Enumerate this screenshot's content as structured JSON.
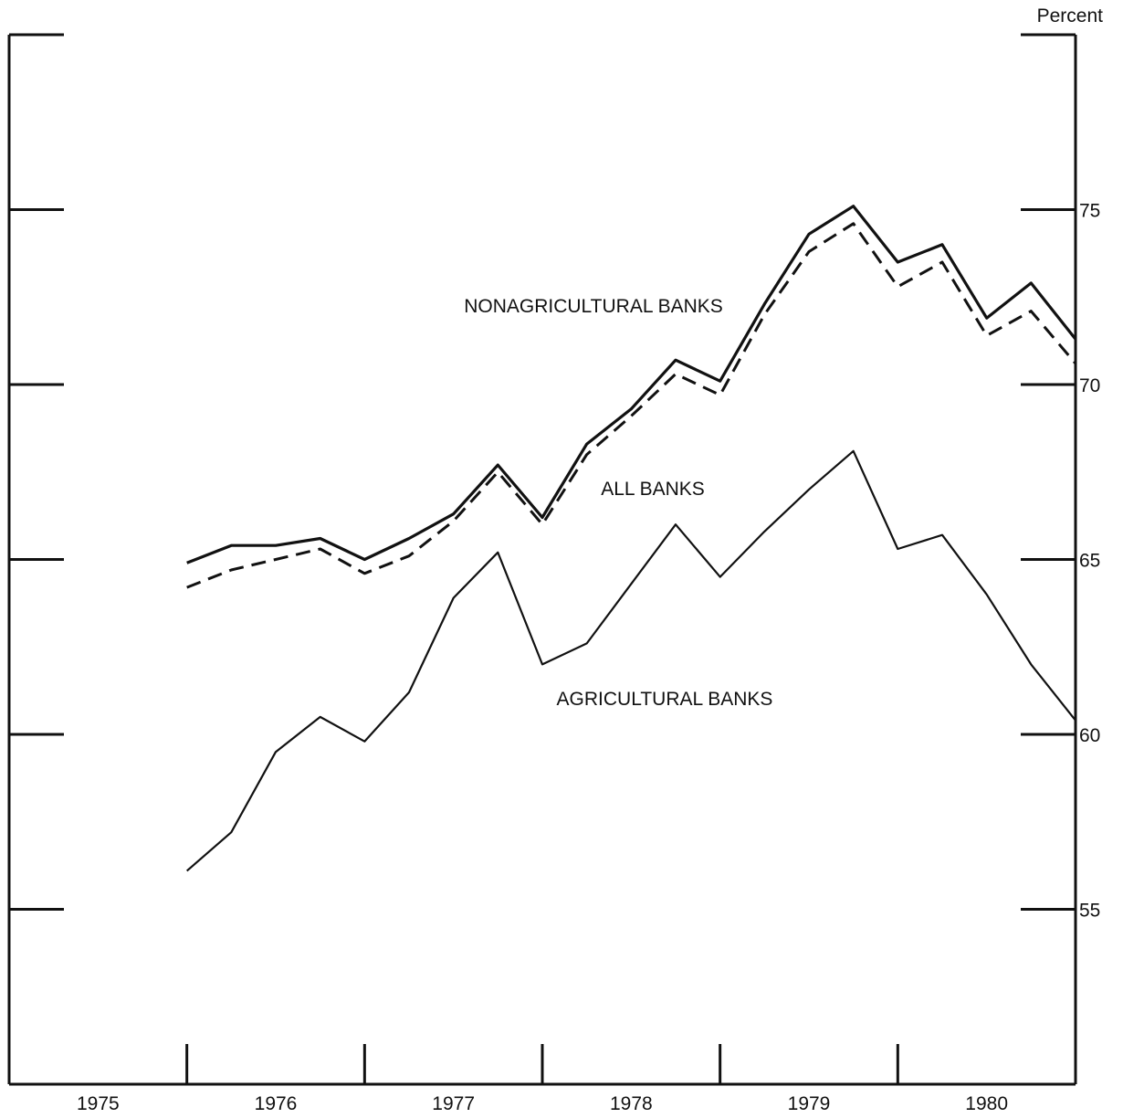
{
  "chart_data": {
    "type": "line",
    "xlabel": "",
    "ylabel": "Percent",
    "x": [
      1975.5,
      1975.75,
      1976.0,
      1976.25,
      1976.5,
      1976.75,
      1977.0,
      1977.25,
      1977.5,
      1977.75,
      1978.0,
      1978.25,
      1978.5,
      1978.75,
      1979.0,
      1979.25,
      1979.5,
      1979.75,
      1980.0,
      1980.25,
      1980.5
    ],
    "x_tick_labels": [
      "1975",
      "1976",
      "1977",
      "1978",
      "1979",
      "1980"
    ],
    "y_ticks": [
      75,
      70,
      65,
      60,
      55
    ],
    "ylim": [
      50,
      80
    ],
    "xlim": [
      1974.5,
      1980.5
    ],
    "series": [
      {
        "name": "NONAGRICULTURAL BANKS",
        "style": "solid-thick",
        "values": [
          64.9,
          65.4,
          65.4,
          65.6,
          65.0,
          65.6,
          66.3,
          67.7,
          66.2,
          68.3,
          69.3,
          70.7,
          70.1,
          72.3,
          74.3,
          75.1,
          73.5,
          74.0,
          71.9,
          72.9,
          71.3
        ]
      },
      {
        "name": "ALL BANKS",
        "style": "dashed",
        "values": [
          64.2,
          64.7,
          65.0,
          65.3,
          64.6,
          65.1,
          66.1,
          67.5,
          66.0,
          68.0,
          69.1,
          70.3,
          69.7,
          72.0,
          73.8,
          74.6,
          72.8,
          73.5,
          71.4,
          72.1,
          70.6
        ]
      },
      {
        "name": "AGRICULTURAL BANKS",
        "style": "solid-thin",
        "values": [
          56.1,
          57.2,
          59.5,
          60.5,
          59.8,
          61.2,
          63.9,
          65.2,
          62.0,
          62.6,
          64.3,
          66.0,
          64.5,
          65.8,
          67.0,
          68.1,
          65.3,
          65.7,
          64.0,
          62.0,
          60.4
        ]
      }
    ]
  }
}
